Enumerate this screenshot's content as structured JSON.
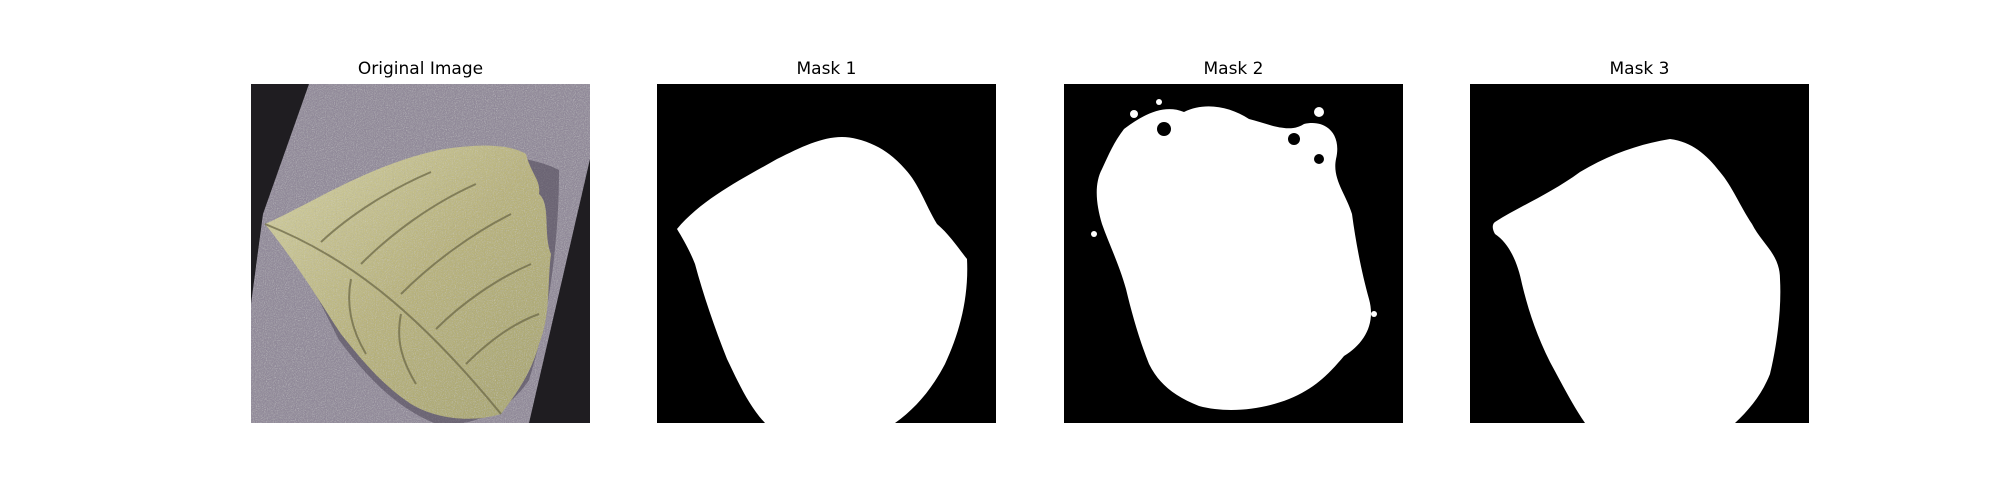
{
  "figure": {
    "panels": [
      {
        "title": "Original Image"
      },
      {
        "title": "Mask 1"
      },
      {
        "title": "Mask 2"
      },
      {
        "title": "Mask 3"
      }
    ]
  },
  "colors": {
    "mask_background": "#000000",
    "mask_foreground": "#ffffff",
    "photo_background": "#8e8597",
    "leaf_color": "#b7b27a"
  }
}
